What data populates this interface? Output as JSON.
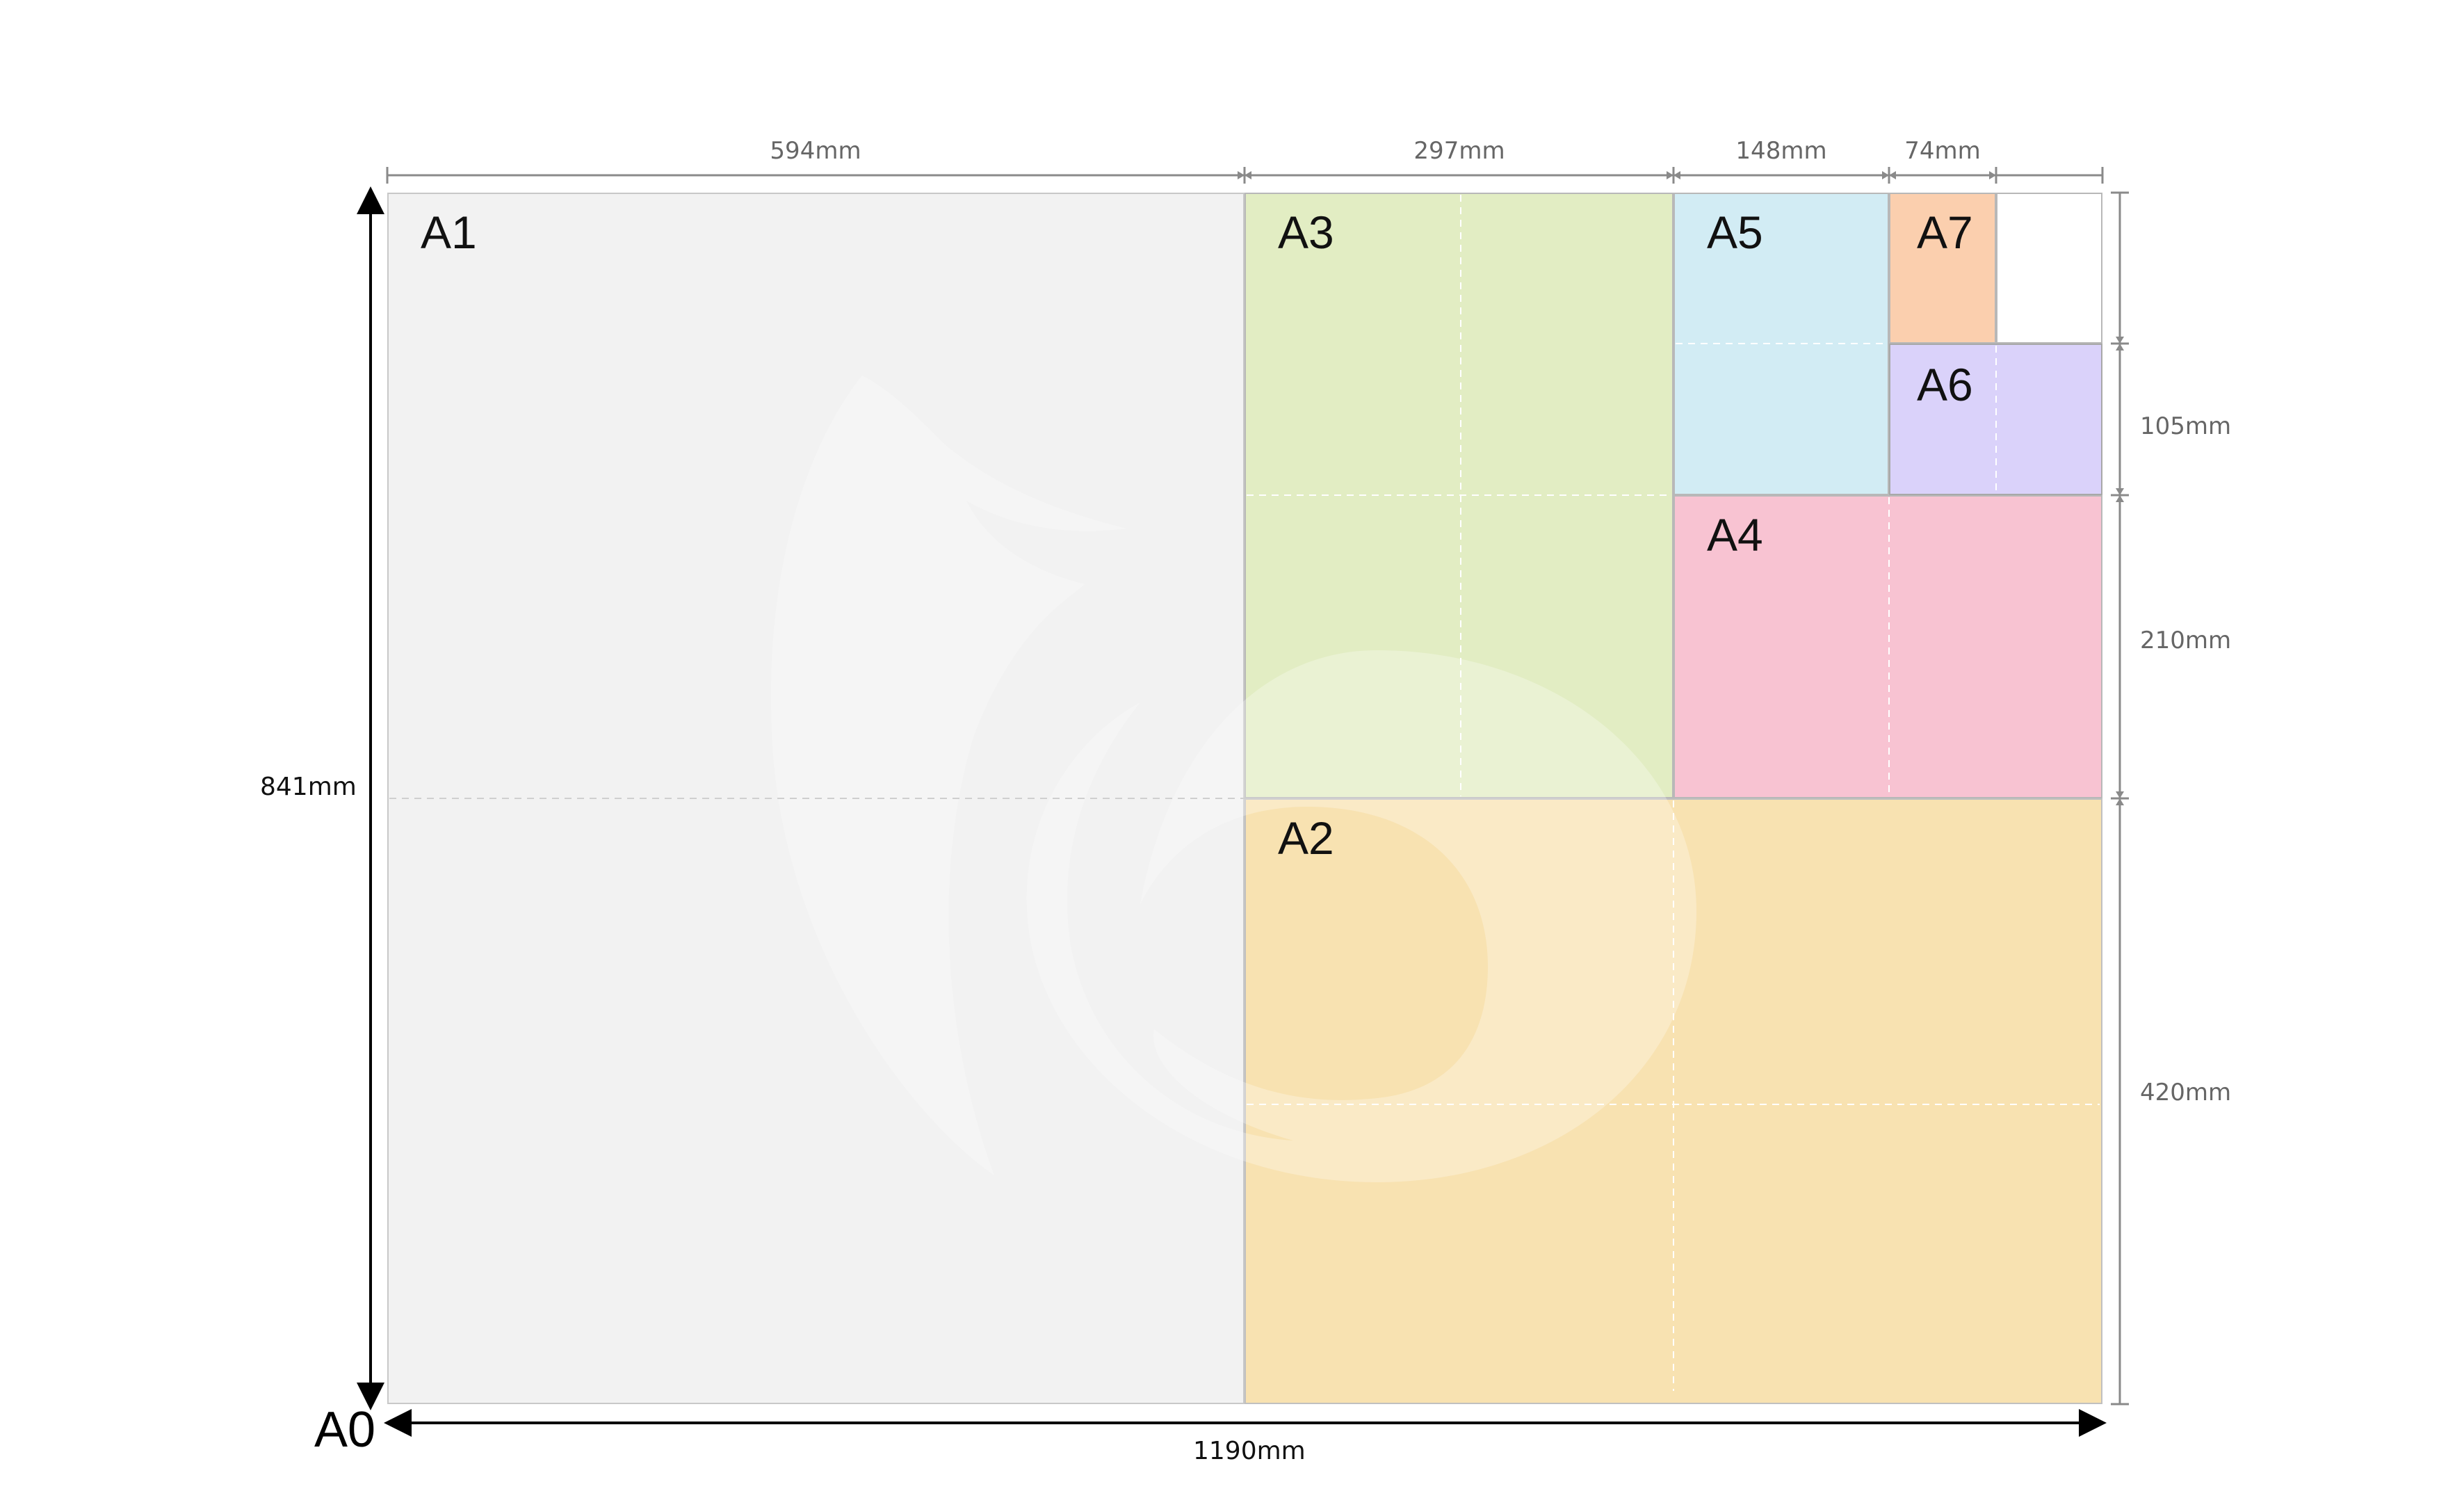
{
  "labels": {
    "a0": "A0",
    "a1": "A1",
    "a2": "A2",
    "a3": "A3",
    "a4": "A4",
    "a5": "A5",
    "a6": "A6",
    "a7": "A7"
  },
  "dimensions": {
    "width_a1": "594mm",
    "width_a3": "297mm",
    "width_a5": "148mm",
    "width_a7": "74mm",
    "height_a6": "105mm",
    "height_a4": "210mm",
    "height_a2": "420mm",
    "height_total": "841mm",
    "width_total": "1190mm"
  },
  "colors": {
    "a1": "#f2f2f2",
    "a2": "#f8e2b1",
    "a3": "#e2edc3",
    "a4": "#f8c3d2",
    "a5": "#d2ecf4",
    "a6": "#dad2fa",
    "a7": "#fbcfae",
    "border": "#b8b8b8",
    "dim_line": "#8a8a8a"
  },
  "watermark": "fox-logo"
}
